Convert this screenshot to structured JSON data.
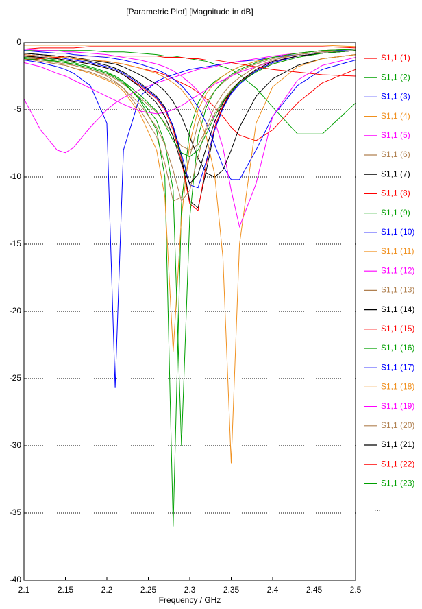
{
  "chart_data": {
    "type": "line",
    "title": "[Parametric Plot] [Magnitude in dB]",
    "xlabel": "Frequency / GHz",
    "x": [
      2.1,
      2.12,
      2.14,
      2.15,
      2.16,
      2.18,
      2.2,
      2.21,
      2.22,
      2.24,
      2.26,
      2.27,
      2.28,
      2.29,
      2.3,
      2.31,
      2.32,
      2.33,
      2.34,
      2.35,
      2.36,
      2.38,
      2.4,
      2.43,
      2.46,
      2.5
    ],
    "xlim": [
      2.1,
      2.5
    ],
    "xticks": [
      2.1,
      2.15,
      2.2,
      2.25,
      2.3,
      2.35,
      2.4,
      2.45,
      2.5
    ],
    "ylim": [
      -40,
      0
    ],
    "yticks": [
      0,
      -5,
      -10,
      -15,
      -20,
      -25,
      -30,
      -35,
      -40
    ],
    "grid": "y",
    "legend": "right",
    "legend_more": "...",
    "series": [
      {
        "name": "S1,1 (1)",
        "color": "#ff0000",
        "values": [
          -0.5,
          -0.4,
          -0.4,
          -0.4,
          -0.4,
          -0.3,
          -0.3,
          -0.3,
          -0.3,
          -0.3,
          -0.3,
          -0.3,
          -0.3,
          -0.3,
          -0.3,
          -0.3,
          -0.3,
          -0.3,
          -0.3,
          -0.3,
          -0.3,
          -0.3,
          -0.3,
          -0.3,
          -0.3,
          -0.4
        ]
      },
      {
        "name": "S1,1 (2)",
        "color": "#00a000",
        "values": [
          -0.6,
          -0.6,
          -0.6,
          -0.6,
          -0.6,
          -0.6,
          -0.7,
          -0.7,
          -0.7,
          -0.8,
          -0.9,
          -1.0,
          -1.0,
          -1.1,
          -1.2,
          -1.3,
          -1.4,
          -1.6,
          -1.8,
          -2.0,
          -2.4,
          -3.4,
          -4.8,
          -6.8,
          -6.8,
          -4.5
        ]
      },
      {
        "name": "S1,1 (3)",
        "color": "#0000ff",
        "values": [
          -1.3,
          -1.5,
          -1.8,
          -2.0,
          -2.3,
          -3.2,
          -6,
          -25.7,
          -8,
          -4,
          -2.9,
          -2.6,
          -2.4,
          -2.2,
          -2.0,
          -1.9,
          -1.8,
          -1.7,
          -1.6,
          -1.5,
          -1.4,
          -1.3,
          -1.1,
          -0.9,
          -0.7,
          -0.5
        ]
      },
      {
        "name": "S1,1 (4)",
        "color": "#f0901e",
        "values": [
          -0.2,
          -0.2,
          -0.2,
          -0.2,
          -0.2,
          -0.2,
          -0.2,
          -0.2,
          -0.2,
          -0.2,
          -0.2,
          -0.2,
          -0.2,
          -0.2,
          -0.2,
          -0.2,
          -0.2,
          -0.2,
          -0.2,
          -0.2,
          -0.2,
          -0.2,
          -0.2,
          -0.2,
          -0.2,
          -0.3
        ]
      },
      {
        "name": "S1,1 (5)",
        "color": "#ff00ff",
        "values": [
          -4.2,
          -6.5,
          -8.0,
          -8.2,
          -7.8,
          -6.3,
          -5.0,
          -4.5,
          -4.1,
          -3.5,
          -3.0,
          -2.8,
          -2.6,
          -2.4,
          -2.2,
          -2.0,
          -1.9,
          -1.8,
          -1.6,
          -1.5,
          -1.4,
          -1.2,
          -1.0,
          -0.8,
          -0.6,
          -0.5
        ]
      },
      {
        "name": "S1,1 (6)",
        "color": "#b08050",
        "values": [
          -1.0,
          -1.2,
          -1.4,
          -1.5,
          -1.7,
          -2.0,
          -2.5,
          -2.9,
          -3.4,
          -5.0,
          -7.0,
          -9.0,
          -11.8,
          -11.5,
          -8.5,
          -6.0,
          -4.5,
          -3.6,
          -3.0,
          -2.5,
          -2.1,
          -1.6,
          -1.2,
          -0.9,
          -0.7,
          -0.6
        ]
      },
      {
        "name": "S1,1 (7)",
        "color": "#000000",
        "values": [
          -0.8,
          -0.9,
          -1.0,
          -1.1,
          -1.2,
          -1.4,
          -1.7,
          -1.9,
          -2.2,
          -3.0,
          -4.0,
          -4.8,
          -6.3,
          -8.5,
          -11.8,
          -12.3,
          -9.5,
          -6.5,
          -4.8,
          -3.7,
          -3.0,
          -2.1,
          -1.5,
          -1.0,
          -0.8,
          -0.6
        ]
      },
      {
        "name": "S1,1 (8)",
        "color": "#ff0000",
        "values": [
          -0.9,
          -1.0,
          -1.1,
          -1.1,
          -1.2,
          -1.3,
          -1.4,
          -1.5,
          -1.6,
          -1.9,
          -2.2,
          -2.4,
          -2.7,
          -3.0,
          -3.3,
          -3.7,
          -4.2,
          -4.8,
          -5.5,
          -6.3,
          -6.9,
          -7.3,
          -6.5,
          -4.5,
          -3.0,
          -2.0
        ]
      },
      {
        "name": "S1,1 (9)",
        "color": "#00a000",
        "values": [
          -1.0,
          -1.1,
          -1.3,
          -1.4,
          -1.5,
          -1.8,
          -2.2,
          -2.5,
          -2.9,
          -4.3,
          -6.5,
          -10,
          -36,
          -12,
          -6.5,
          -4.5,
          -3.5,
          -2.9,
          -2.5,
          -2.1,
          -1.8,
          -1.4,
          -1.1,
          -0.8,
          -0.6,
          -0.5
        ]
      },
      {
        "name": "S1,1 (10)",
        "color": "#0000ff",
        "values": [
          -0.6,
          -0.7,
          -0.8,
          -0.8,
          -0.9,
          -1.0,
          -1.1,
          -1.2,
          -1.3,
          -1.6,
          -2.0,
          -2.3,
          -2.7,
          -3.2,
          -3.9,
          -4.8,
          -6.0,
          -7.6,
          -9.2,
          -10.2,
          -10.2,
          -8.0,
          -5.5,
          -3.2,
          -2.0,
          -1.3
        ]
      },
      {
        "name": "S1,1 (11)",
        "color": "#f0901e",
        "values": [
          -1.2,
          -1.4,
          -1.6,
          -1.7,
          -1.9,
          -2.3,
          -2.8,
          -3.1,
          -3.6,
          -5.3,
          -8.0,
          -11.5,
          -23,
          -13,
          -7.5,
          -5.0,
          -3.8,
          -3.0,
          -2.5,
          -2.1,
          -1.8,
          -1.4,
          -1.1,
          -0.8,
          -0.6,
          -0.5
        ]
      },
      {
        "name": "S1,1 (12)",
        "color": "#ff00ff",
        "values": [
          -0.5,
          -0.6,
          -0.6,
          -0.7,
          -0.7,
          -0.8,
          -0.9,
          -1.0,
          -1.1,
          -1.3,
          -1.6,
          -1.8,
          -2.1,
          -2.5,
          -3.0,
          -3.6,
          -4.5,
          -5.8,
          -7.8,
          -11.0,
          -13.7,
          -10.5,
          -5.5,
          -2.8,
          -1.7,
          -1.1
        ]
      },
      {
        "name": "S1,1 (13)",
        "color": "#b08050",
        "values": [
          -1.1,
          -1.3,
          -1.5,
          -1.6,
          -1.7,
          -2.0,
          -2.4,
          -2.7,
          -3.1,
          -4.1,
          -5.2,
          -6.0,
          -6.9,
          -7.7,
          -8.0,
          -7.6,
          -6.5,
          -5.3,
          -4.3,
          -3.5,
          -2.9,
          -2.1,
          -1.6,
          -1.1,
          -0.8,
          -0.6
        ]
      },
      {
        "name": "S1,1 (14)",
        "color": "#000000",
        "values": [
          -0.8,
          -0.9,
          -1.0,
          -1.0,
          -1.1,
          -1.3,
          -1.5,
          -1.6,
          -1.8,
          -2.4,
          -3.1,
          -3.6,
          -4.4,
          -5.5,
          -7.0,
          -8.6,
          -9.7,
          -10.0,
          -9.5,
          -8.0,
          -6.3,
          -4.0,
          -2.7,
          -1.7,
          -1.2,
          -0.9
        ]
      },
      {
        "name": "S1,1 (15)",
        "color": "#ff0000",
        "values": [
          -1.0,
          -1.1,
          -1.2,
          -1.3,
          -1.4,
          -1.6,
          -1.9,
          -2.1,
          -2.4,
          -3.2,
          -4.2,
          -5.0,
          -6.5,
          -8.8,
          -12.0,
          -12.5,
          -9.0,
          -6.3,
          -4.7,
          -3.6,
          -2.9,
          -2.0,
          -1.4,
          -1.0,
          -0.8,
          -0.6
        ]
      },
      {
        "name": "S1,1 (16)",
        "color": "#00a000",
        "values": [
          -1.1,
          -1.2,
          -1.4,
          -1.5,
          -1.6,
          -1.9,
          -2.3,
          -2.6,
          -3.0,
          -4.2,
          -5.8,
          -7.5,
          -11,
          -30,
          -13,
          -7,
          -4.8,
          -3.6,
          -2.9,
          -2.4,
          -2.0,
          -1.5,
          -1.1,
          -0.8,
          -0.6,
          -0.5
        ]
      },
      {
        "name": "S1,1 (17)",
        "color": "#0000ff",
        "values": [
          -0.9,
          -1.0,
          -1.1,
          -1.2,
          -1.3,
          -1.5,
          -1.8,
          -2.0,
          -2.3,
          -3.1,
          -4.1,
          -4.9,
          -6.2,
          -8.3,
          -10.6,
          -10.8,
          -8.8,
          -6.5,
          -4.9,
          -3.8,
          -3.1,
          -2.1,
          -1.5,
          -1.0,
          -0.8,
          -0.6
        ]
      },
      {
        "name": "S1,1 (18)",
        "color": "#f0901e",
        "values": [
          -0.9,
          -1.0,
          -1.1,
          -1.1,
          -1.2,
          -1.3,
          -1.4,
          -1.5,
          -1.6,
          -1.9,
          -2.3,
          -2.6,
          -3.0,
          -3.5,
          -4.3,
          -5.4,
          -7.0,
          -9.8,
          -16,
          -31.3,
          -15,
          -6,
          -3.3,
          -1.8,
          -1.2,
          -0.9
        ]
      },
      {
        "name": "S1,1 (19)",
        "color": "#ff00ff",
        "values": [
          -1.5,
          -1.8,
          -2.3,
          -2.5,
          -2.8,
          -3.4,
          -4.0,
          -4.3,
          -4.6,
          -5.1,
          -5.3,
          -5.2,
          -5.0,
          -4.7,
          -4.3,
          -3.9,
          -3.5,
          -3.1,
          -2.8,
          -2.5,
          -2.2,
          -1.8,
          -1.4,
          -1.0,
          -0.8,
          -0.6
        ]
      },
      {
        "name": "S1,1 (20)",
        "color": "#b08050",
        "values": [
          -1.2,
          -1.4,
          -1.6,
          -1.7,
          -1.9,
          -2.2,
          -2.7,
          -3.0,
          -3.4,
          -4.6,
          -6.3,
          -7.6,
          -9.5,
          -11.8,
          -11.0,
          -8.5,
          -6.2,
          -4.8,
          -3.8,
          -3.1,
          -2.6,
          -1.8,
          -1.3,
          -0.9,
          -0.7,
          -0.6
        ]
      },
      {
        "name": "S1,1 (21)",
        "color": "#000000",
        "values": [
          -1.0,
          -1.1,
          -1.2,
          -1.3,
          -1.4,
          -1.6,
          -1.9,
          -2.1,
          -2.4,
          -3.3,
          -4.5,
          -5.5,
          -7.0,
          -9.0,
          -10.5,
          -9.8,
          -7.8,
          -5.9,
          -4.5,
          -3.6,
          -2.9,
          -2.0,
          -1.4,
          -1.0,
          -0.8,
          -0.6
        ]
      },
      {
        "name": "S1,1 (22)",
        "color": "#ff0000",
        "values": [
          -1.3,
          -1.2,
          -1.1,
          -1.0,
          -1.0,
          -1.0,
          -1.0,
          -1.0,
          -1.0,
          -1.0,
          -1.0,
          -1.1,
          -1.1,
          -1.1,
          -1.2,
          -1.2,
          -1.3,
          -1.3,
          -1.4,
          -1.5,
          -1.6,
          -1.8,
          -2.0,
          -2.2,
          -2.4,
          -2.5
        ]
      },
      {
        "name": "S1,1 (23)",
        "color": "#00a000",
        "values": [
          -1.2,
          -1.3,
          -1.4,
          -1.5,
          -1.6,
          -1.9,
          -2.3,
          -2.5,
          -2.9,
          -3.9,
          -5.1,
          -6.1,
          -7.3,
          -8.2,
          -8.5,
          -8.0,
          -6.8,
          -5.5,
          -4.4,
          -3.6,
          -3.0,
          -2.2,
          -1.6,
          -1.1,
          -0.8,
          -0.6
        ]
      }
    ]
  }
}
